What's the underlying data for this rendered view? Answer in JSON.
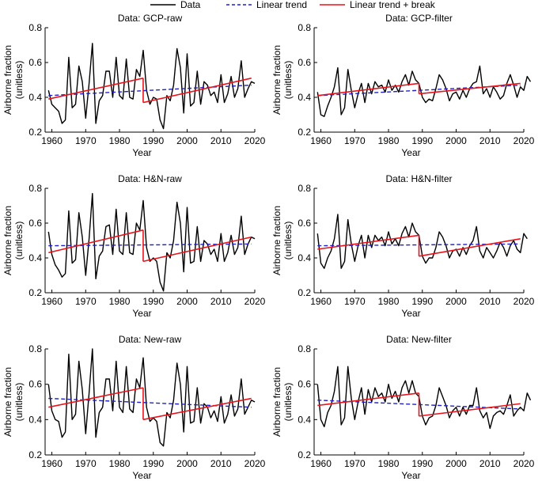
{
  "legend": {
    "items": [
      {
        "label": "Data",
        "color": "#000000",
        "style": "solid"
      },
      {
        "label": "Linear trend",
        "color": "#1f1fcc",
        "style": "dashed"
      },
      {
        "label": "Linear trend + break",
        "color": "#e8141c",
        "style": "solid"
      }
    ]
  },
  "colors": {
    "data": "#000000",
    "linear_trend": "#1f1fcc",
    "break_trend": "#e8141c"
  },
  "chart_data": [
    {
      "type": "line",
      "title": "Data: GCP-raw",
      "xlabel": "Year",
      "ylabel": [
        "Airborne fraction",
        "(unitless)"
      ],
      "xlim": [
        1958,
        2020
      ],
      "ylim": [
        0.2,
        0.8
      ],
      "xticks": [
        1960,
        1970,
        1980,
        1990,
        2000,
        2010,
        2020
      ],
      "yticks": [
        0.2,
        0.4,
        0.6,
        0.8
      ],
      "grid": false,
      "x_start": 1959,
      "series": [
        {
          "name": "Data",
          "values": [
            0.44,
            0.36,
            0.34,
            0.32,
            0.25,
            0.27,
            0.63,
            0.34,
            0.36,
            0.58,
            0.49,
            0.28,
            0.48,
            0.71,
            0.25,
            0.38,
            0.41,
            0.55,
            0.55,
            0.4,
            0.63,
            0.41,
            0.39,
            0.62,
            0.4,
            0.39,
            0.56,
            0.52,
            0.67,
            0.44,
            0.36,
            0.4,
            0.39,
            0.27,
            0.22,
            0.41,
            0.38,
            0.47,
            0.68,
            0.57,
            0.31,
            0.65,
            0.35,
            0.37,
            0.55,
            0.36,
            0.49,
            0.47,
            0.41,
            0.43,
            0.37,
            0.53,
            0.37,
            0.42,
            0.52,
            0.4,
            0.45,
            0.61,
            0.4,
            0.45,
            0.49,
            0.48
          ]
        },
        {
          "name": "Linear trend",
          "segments": [
            {
              "x": [
                1959,
                2019
              ],
              "y": [
                0.41,
                0.47
              ]
            }
          ]
        },
        {
          "name": "Linear trend + break",
          "segments": [
            {
              "x": [
                1959,
                1987
              ],
              "y": [
                0.39,
                0.51
              ]
            },
            {
              "x": [
                1987,
                2019
              ],
              "y": [
                0.37,
                0.51
              ]
            }
          ]
        }
      ]
    },
    {
      "type": "line",
      "title": "Data: GCP-filter",
      "xlabel": "Year",
      "ylabel": [
        "Airborne fraction",
        "(unitless)"
      ],
      "xlim": [
        1958,
        2020
      ],
      "ylim": [
        0.2,
        0.8
      ],
      "xticks": [
        1960,
        1970,
        1980,
        1990,
        2000,
        2010,
        2020
      ],
      "yticks": [
        0.2,
        0.4,
        0.6,
        0.8
      ],
      "grid": false,
      "x_start": 1959,
      "series": [
        {
          "name": "Data",
          "values": [
            0.43,
            0.3,
            0.29,
            0.35,
            0.4,
            0.46,
            0.57,
            0.3,
            0.34,
            0.56,
            0.44,
            0.34,
            0.42,
            0.48,
            0.37,
            0.48,
            0.42,
            0.49,
            0.46,
            0.47,
            0.43,
            0.5,
            0.44,
            0.47,
            0.43,
            0.49,
            0.53,
            0.47,
            0.55,
            0.5,
            0.48,
            0.4,
            0.37,
            0.39,
            0.38,
            0.45,
            0.53,
            0.5,
            0.45,
            0.38,
            0.42,
            0.43,
            0.39,
            0.44,
            0.4,
            0.45,
            0.48,
            0.49,
            0.58,
            0.42,
            0.45,
            0.4,
            0.46,
            0.43,
            0.39,
            0.41,
            0.48,
            0.53,
            0.47,
            0.4,
            0.46,
            0.44,
            0.52,
            0.49
          ]
        },
        {
          "name": "Linear trend",
          "segments": [
            {
              "x": [
                1959,
                2019
              ],
              "y": [
                0.41,
                0.47
              ]
            }
          ]
        },
        {
          "name": "Linear trend + break",
          "segments": [
            {
              "x": [
                1959,
                1989
              ],
              "y": [
                0.41,
                0.48
              ]
            },
            {
              "x": [
                1989,
                2019
              ],
              "y": [
                0.42,
                0.48
              ]
            }
          ]
        }
      ]
    },
    {
      "type": "line",
      "title": "Data: H&N-raw",
      "xlabel": "Year",
      "ylabel": [
        "Airborne fraction",
        "(unitless)"
      ],
      "xlim": [
        1958,
        2020
      ],
      "ylim": [
        0.2,
        0.8
      ],
      "xticks": [
        1960,
        1970,
        1980,
        1990,
        2000,
        2010,
        2020
      ],
      "yticks": [
        0.2,
        0.4,
        0.6,
        0.8
      ],
      "grid": false,
      "x_start": 1959,
      "series": [
        {
          "name": "Data",
          "values": [
            0.55,
            0.42,
            0.36,
            0.33,
            0.29,
            0.31,
            0.67,
            0.37,
            0.39,
            0.66,
            0.52,
            0.3,
            0.51,
            0.77,
            0.28,
            0.41,
            0.44,
            0.58,
            0.59,
            0.42,
            0.68,
            0.44,
            0.42,
            0.66,
            0.43,
            0.42,
            0.6,
            0.56,
            0.73,
            0.46,
            0.38,
            0.4,
            0.38,
            0.26,
            0.21,
            0.43,
            0.4,
            0.5,
            0.72,
            0.6,
            0.32,
            0.69,
            0.37,
            0.38,
            0.58,
            0.38,
            0.5,
            0.48,
            0.42,
            0.45,
            0.38,
            0.54,
            0.38,
            0.43,
            0.53,
            0.42,
            0.46,
            0.64,
            0.42,
            0.48,
            0.52,
            0.51
          ]
        },
        {
          "name": "Linear trend",
          "segments": [
            {
              "x": [
                1959,
                2019
              ],
              "y": [
                0.47,
                0.48
              ]
            }
          ]
        },
        {
          "name": "Linear trend + break",
          "segments": [
            {
              "x": [
                1959,
                1987
              ],
              "y": [
                0.43,
                0.56
              ]
            },
            {
              "x": [
                1987,
                2019
              ],
              "y": [
                0.38,
                0.52
              ]
            }
          ]
        }
      ]
    },
    {
      "type": "line",
      "title": "Data: H&N-filter",
      "xlabel": "Year",
      "ylabel": [
        "Airborne fraction",
        "(unitless)"
      ],
      "xlim": [
        1958,
        2020
      ],
      "ylim": [
        0.2,
        0.8
      ],
      "xticks": [
        1960,
        1970,
        1980,
        1990,
        2000,
        2010,
        2020
      ],
      "yticks": [
        0.2,
        0.4,
        0.6,
        0.8
      ],
      "grid": false,
      "x_start": 1959,
      "series": [
        {
          "name": "Data",
          "values": [
            0.54,
            0.37,
            0.34,
            0.4,
            0.44,
            0.51,
            0.65,
            0.34,
            0.38,
            0.62,
            0.48,
            0.38,
            0.47,
            0.53,
            0.4,
            0.53,
            0.46,
            0.53,
            0.5,
            0.52,
            0.47,
            0.55,
            0.48,
            0.51,
            0.47,
            0.54,
            0.58,
            0.52,
            0.6,
            0.55,
            0.53,
            0.41,
            0.37,
            0.4,
            0.4,
            0.46,
            0.55,
            0.52,
            0.47,
            0.4,
            0.44,
            0.45,
            0.41,
            0.46,
            0.42,
            0.47,
            0.5,
            0.58,
            0.44,
            0.4,
            0.46,
            0.43,
            0.4,
            0.44,
            0.49,
            0.46,
            0.41,
            0.47,
            0.5,
            0.45,
            0.43,
            0.54,
            0.51
          ]
        },
        {
          "name": "Linear trend",
          "segments": [
            {
              "x": [
                1959,
                2019
              ],
              "y": [
                0.47,
                0.48
              ]
            }
          ]
        },
        {
          "name": "Linear trend + break",
          "segments": [
            {
              "x": [
                1959,
                1989
              ],
              "y": [
                0.45,
                0.53
              ]
            },
            {
              "x": [
                1989,
                2019
              ],
              "y": [
                0.41,
                0.51
              ]
            }
          ]
        }
      ]
    },
    {
      "type": "line",
      "title": "Data: New-raw",
      "xlabel": "Year",
      "ylabel": [
        "Airborne fraction",
        "(unitless)"
      ],
      "xlim": [
        1958,
        2020
      ],
      "ylim": [
        0.2,
        0.8
      ],
      "xticks": [
        1960,
        1970,
        1980,
        1990,
        2000,
        2010,
        2020
      ],
      "yticks": [
        0.2,
        0.4,
        0.6,
        0.8
      ],
      "grid": false,
      "x_start": 1959,
      "series": [
        {
          "name": "Data",
          "values": [
            0.6,
            0.45,
            0.4,
            0.39,
            0.3,
            0.33,
            0.77,
            0.4,
            0.43,
            0.73,
            0.57,
            0.32,
            0.55,
            0.8,
            0.3,
            0.44,
            0.47,
            0.63,
            0.63,
            0.45,
            0.73,
            0.47,
            0.44,
            0.7,
            0.46,
            0.44,
            0.63,
            0.58,
            0.75,
            0.47,
            0.39,
            0.41,
            0.39,
            0.27,
            0.25,
            0.44,
            0.41,
            0.51,
            0.72,
            0.6,
            0.33,
            0.7,
            0.38,
            0.39,
            0.58,
            0.38,
            0.49,
            0.47,
            0.41,
            0.45,
            0.39,
            0.53,
            0.38,
            0.43,
            0.54,
            0.42,
            0.46,
            0.63,
            0.43,
            0.47,
            0.51,
            0.5
          ]
        },
        {
          "name": "Linear trend",
          "segments": [
            {
              "x": [
                1959,
                2019
              ],
              "y": [
                0.52,
                0.47
              ]
            }
          ]
        },
        {
          "name": "Linear trend + break",
          "segments": [
            {
              "x": [
                1959,
                1987
              ],
              "y": [
                0.47,
                0.58
              ]
            },
            {
              "x": [
                1987,
                2019
              ],
              "y": [
                0.4,
                0.52
              ]
            }
          ]
        }
      ]
    },
    {
      "type": "line",
      "title": "Data: New-filter",
      "xlabel": "Year",
      "ylabel": [
        "Airborne fraction",
        "(unitless)"
      ],
      "xlim": [
        1958,
        2020
      ],
      "ylim": [
        0.2,
        0.8
      ],
      "xticks": [
        1960,
        1970,
        1980,
        1990,
        2000,
        2010,
        2020
      ],
      "yticks": [
        0.2,
        0.4,
        0.6,
        0.8
      ],
      "grid": false,
      "x_start": 1959,
      "series": [
        {
          "name": "Data",
          "values": [
            0.6,
            0.4,
            0.36,
            0.44,
            0.48,
            0.56,
            0.7,
            0.37,
            0.41,
            0.7,
            0.52,
            0.4,
            0.5,
            0.58,
            0.43,
            0.57,
            0.5,
            0.58,
            0.53,
            0.55,
            0.5,
            0.6,
            0.52,
            0.56,
            0.5,
            0.58,
            0.62,
            0.55,
            0.62,
            0.55,
            0.53,
            0.42,
            0.37,
            0.41,
            0.42,
            0.48,
            0.58,
            0.53,
            0.48,
            0.41,
            0.45,
            0.47,
            0.42,
            0.47,
            0.43,
            0.48,
            0.48,
            0.58,
            0.45,
            0.41,
            0.44,
            0.35,
            0.42,
            0.44,
            0.45,
            0.43,
            0.48,
            0.54,
            0.42,
            0.45,
            0.47,
            0.45,
            0.55,
            0.51
          ]
        },
        {
          "name": "Linear trend",
          "segments": [
            {
              "x": [
                1959,
                2019
              ],
              "y": [
                0.51,
                0.46
              ]
            }
          ]
        },
        {
          "name": "Linear trend + break",
          "segments": [
            {
              "x": [
                1959,
                1989
              ],
              "y": [
                0.48,
                0.55
              ]
            },
            {
              "x": [
                1989,
                2019
              ],
              "y": [
                0.42,
                0.49
              ]
            }
          ]
        }
      ]
    }
  ]
}
